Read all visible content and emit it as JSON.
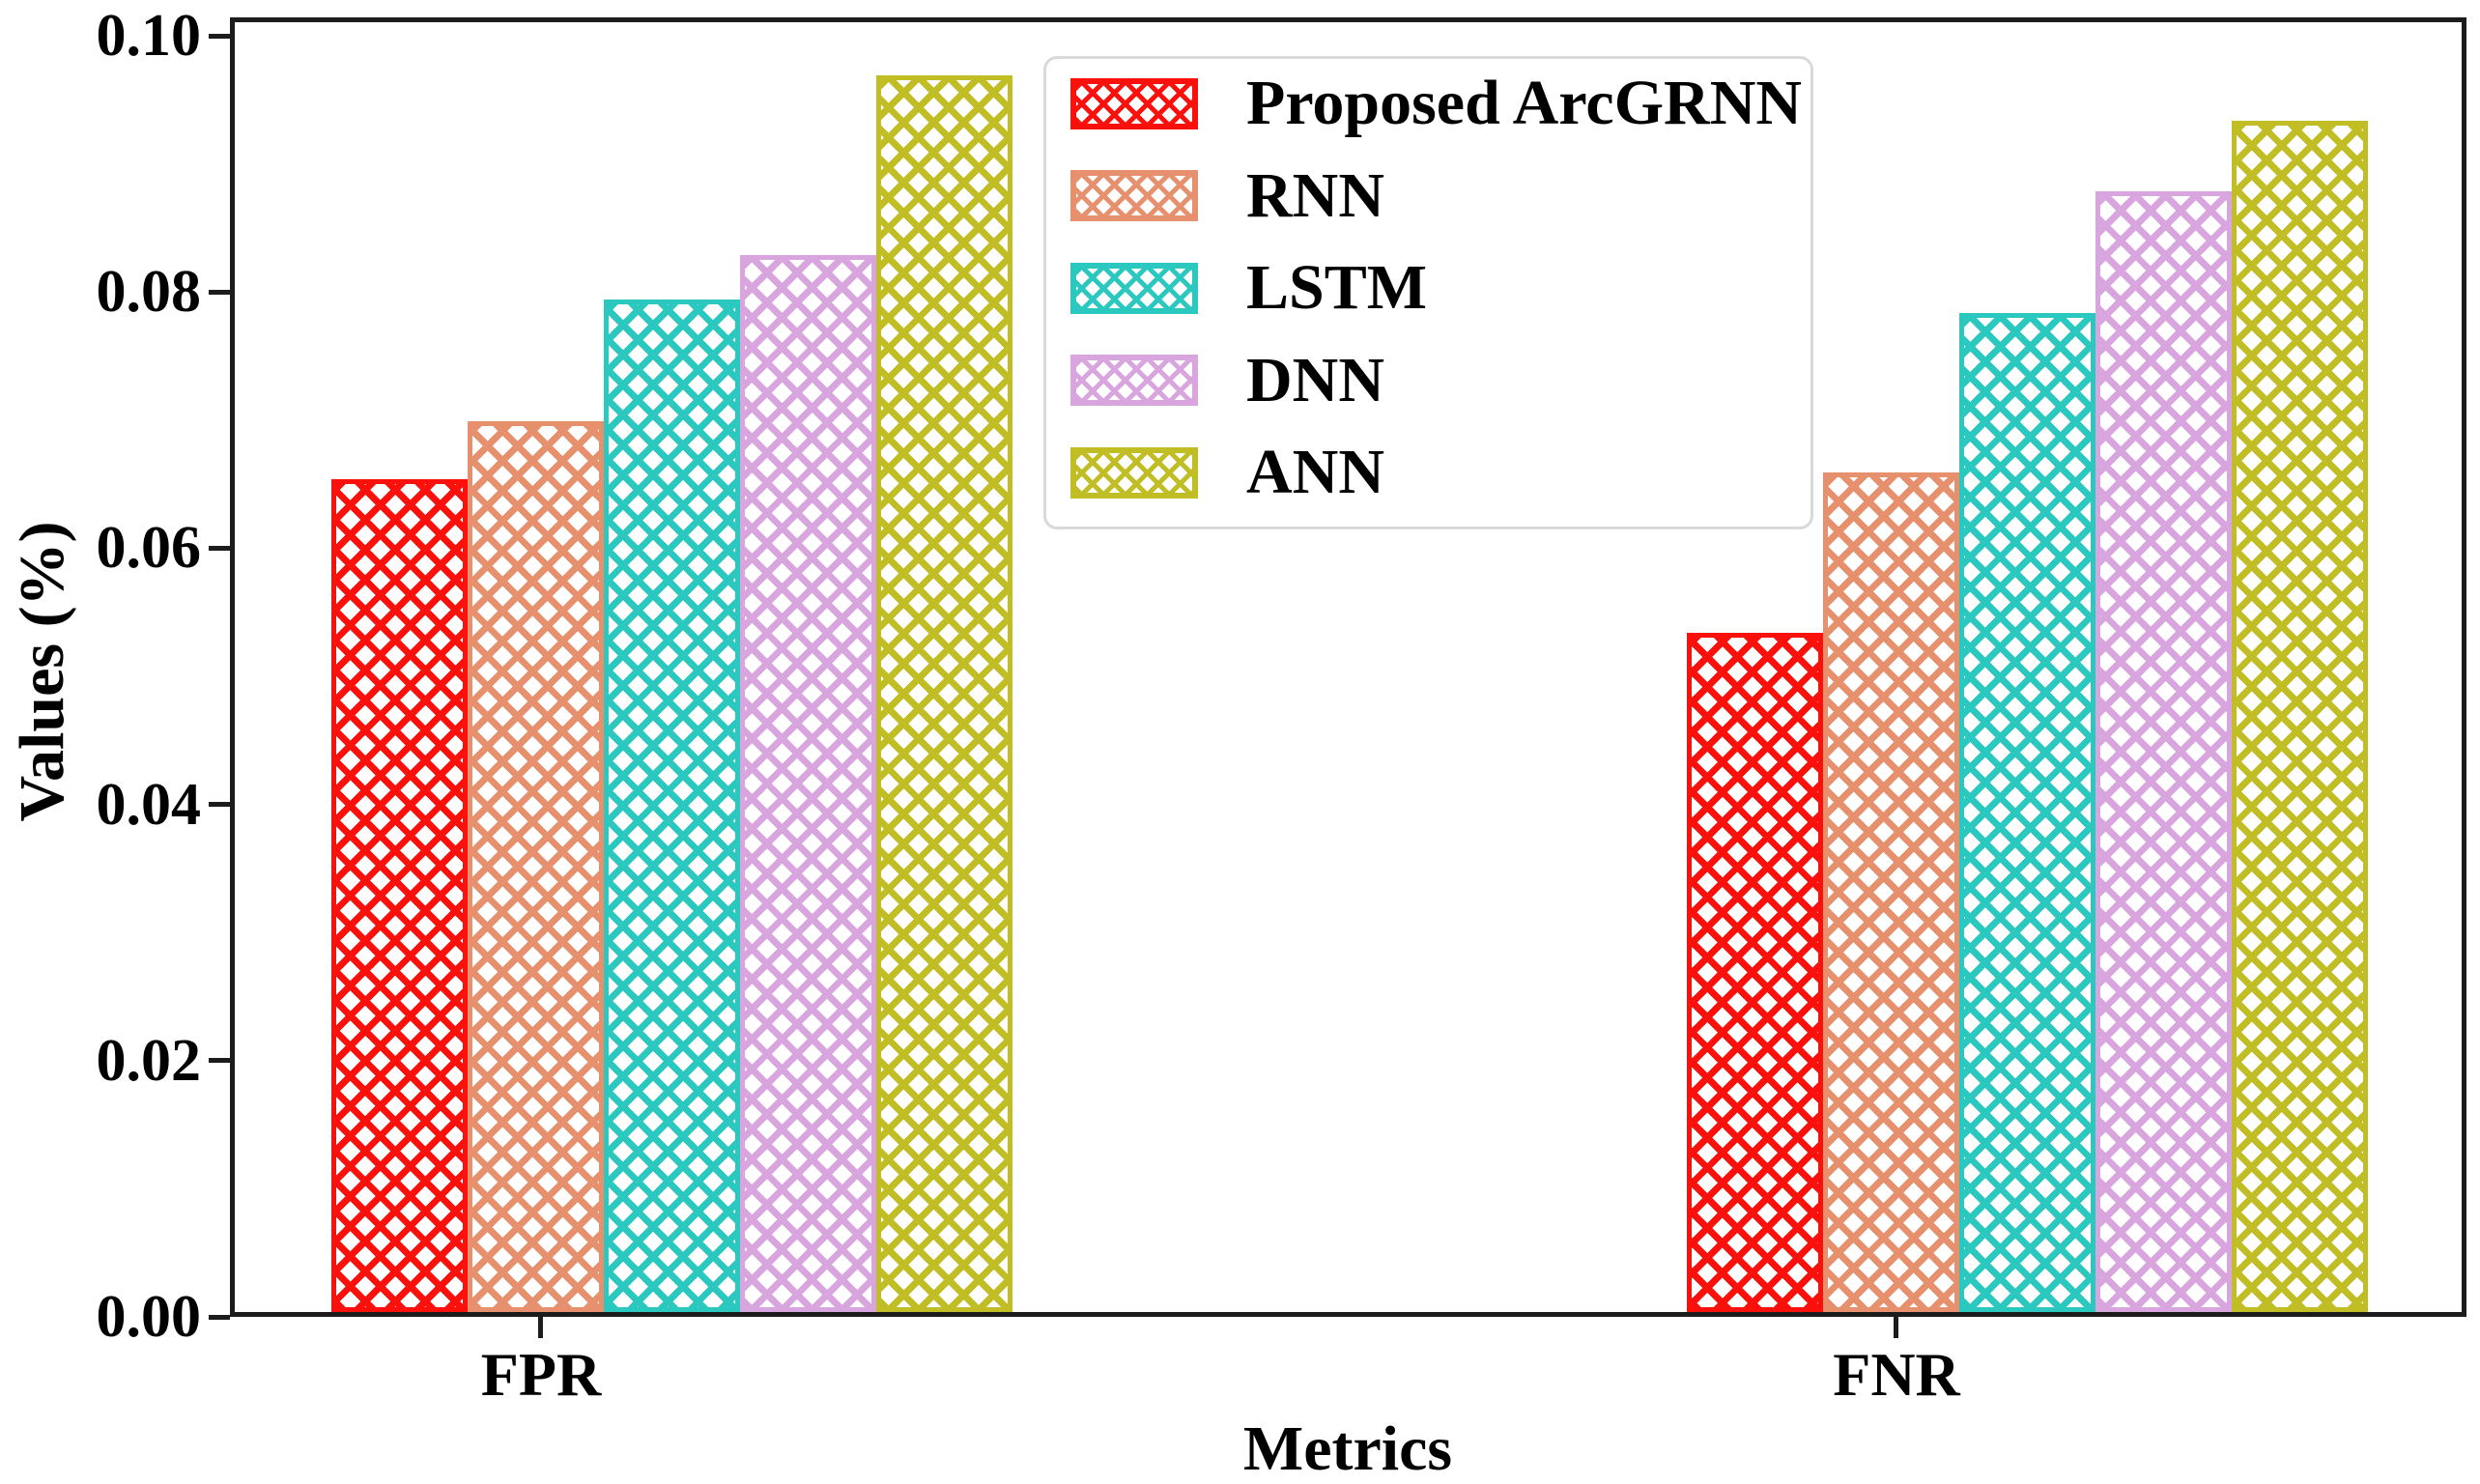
{
  "chart_data": {
    "type": "bar",
    "title": "",
    "xlabel": "Metrics",
    "ylabel": "Values (%)",
    "categories": [
      "FPR",
      "FNR"
    ],
    "series": [
      {
        "name": "Proposed ArcGRNN",
        "color": "#fb100c",
        "values": [
          0.065,
          0.053
        ]
      },
      {
        "name": "RNN",
        "color": "#e6906e",
        "values": [
          0.0695,
          0.0655
        ]
      },
      {
        "name": "LSTM",
        "color": "#2bc8bf",
        "values": [
          0.079,
          0.078
        ]
      },
      {
        "name": "DNN",
        "color": "#d9a5de",
        "values": [
          0.0825,
          0.0875
        ]
      },
      {
        "name": "ANN",
        "color": "#c1be25",
        "values": [
          0.0965,
          0.093
        ]
      }
    ],
    "yticks": [
      {
        "label": "0.00",
        "value": 0.0
      },
      {
        "label": "0.02",
        "value": 0.02
      },
      {
        "label": "0.04",
        "value": 0.04
      },
      {
        "label": "0.06",
        "value": 0.06
      },
      {
        "label": "0.08",
        "value": 0.08
      },
      {
        "label": "0.10",
        "value": 0.1
      }
    ],
    "ylim": [
      0,
      0.1014
    ],
    "grid": false,
    "hatch": "xx",
    "legend_position": "upper center",
    "bar_style": "white fill with colored crosshatch and colored edge"
  }
}
